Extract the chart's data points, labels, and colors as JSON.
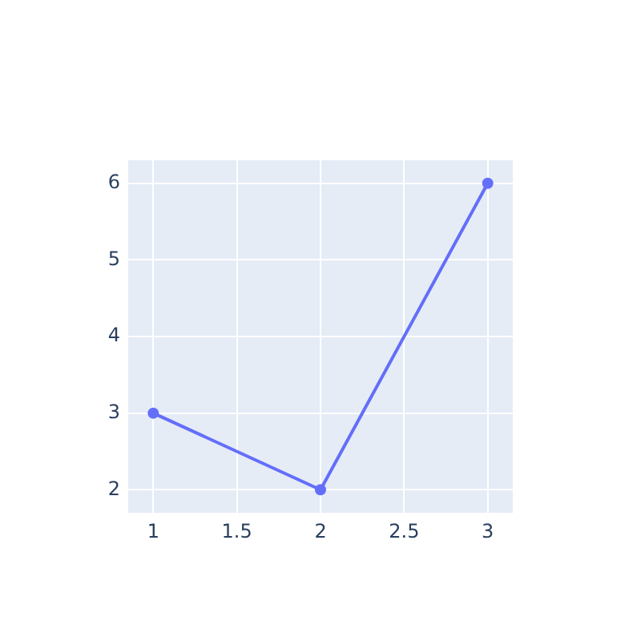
{
  "chart_data": {
    "type": "line",
    "x": [
      1,
      2,
      3
    ],
    "values": [
      3,
      2,
      6
    ],
    "color": "#636efa",
    "xlim": [
      0.85,
      3.15
    ],
    "ylim": [
      1.7,
      6.3
    ],
    "xticks": [
      1,
      1.5,
      2,
      2.5,
      3
    ],
    "yticks": [
      2,
      3,
      4,
      5,
      6
    ],
    "grid": true,
    "marker": "circle",
    "line_style": "solid"
  }
}
